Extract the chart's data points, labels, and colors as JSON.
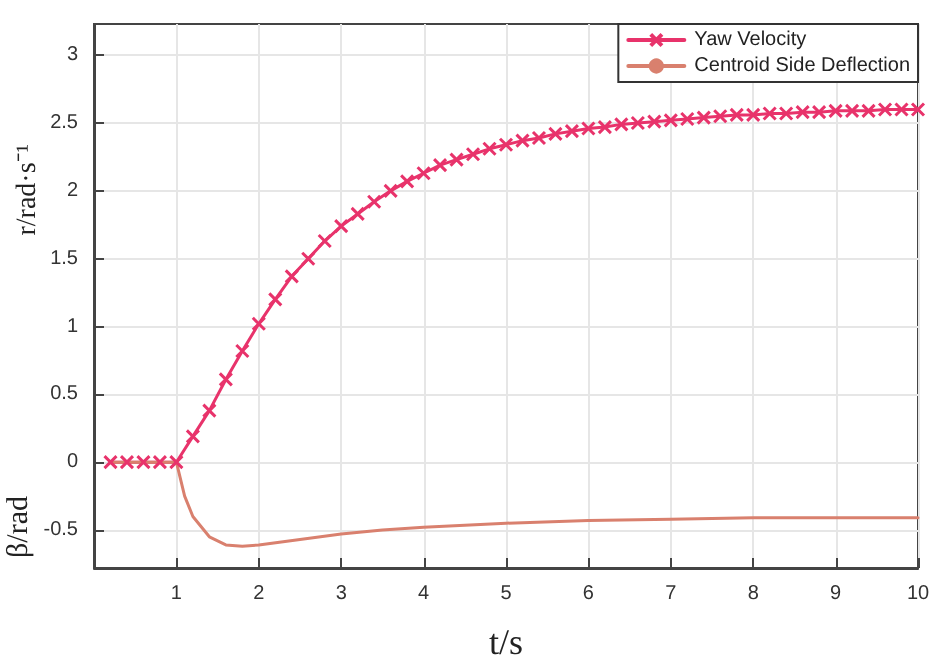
{
  "chart_data": {
    "type": "line",
    "xlabel": "t/s",
    "ylabel": "r/rad·s⁻¹",
    "annotations": [
      "β/rad"
    ],
    "xlim": [
      0,
      10
    ],
    "xticks": [
      1,
      2,
      3,
      4,
      5,
      6,
      7,
      8,
      9,
      10
    ],
    "ylim": [
      -0.78,
      3.23
    ],
    "yticks": [
      -0.5,
      0,
      0.5,
      1,
      1.5,
      2,
      2.5,
      3
    ],
    "grid": true,
    "legend": "top right",
    "line_style": "solid",
    "series": [
      {
        "name": "Yaw Velocity",
        "color": "#e8336b",
        "marker": "cross",
        "x": [
          0.2,
          0.4,
          0.6,
          0.8,
          1.0,
          1.2,
          1.4,
          1.6,
          1.8,
          2.0,
          2.2,
          2.4,
          2.6,
          2.8,
          3.0,
          3.2,
          3.4,
          3.6,
          3.8,
          4.0,
          4.2,
          4.4,
          4.6,
          4.8,
          5.0,
          5.2,
          5.4,
          5.6,
          5.8,
          6.0,
          6.2,
          6.4,
          6.6,
          6.8,
          7.0,
          7.2,
          7.4,
          7.6,
          7.8,
          8.0,
          8.2,
          8.4,
          8.6,
          8.8,
          9.0,
          9.2,
          9.4,
          9.6,
          9.8,
          10.0
        ],
        "values": [
          0,
          0,
          0,
          0,
          0,
          0.19,
          0.38,
          0.61,
          0.82,
          1.02,
          1.2,
          1.37,
          1.5,
          1.63,
          1.74,
          1.83,
          1.92,
          2.0,
          2.07,
          2.13,
          2.19,
          2.23,
          2.27,
          2.31,
          2.34,
          2.37,
          2.39,
          2.42,
          2.44,
          2.46,
          2.47,
          2.49,
          2.5,
          2.51,
          2.52,
          2.53,
          2.54,
          2.55,
          2.56,
          2.56,
          2.57,
          2.57,
          2.58,
          2.58,
          2.59,
          2.59,
          2.59,
          2.6,
          2.6,
          2.6
        ]
      },
      {
        "name": "Centroid Side Deflection",
        "color": "#d9806e",
        "marker": "none",
        "x": [
          0.2,
          1.0,
          1.1,
          1.2,
          1.4,
          1.6,
          1.8,
          2.0,
          2.5,
          3.0,
          3.5,
          4.0,
          5.0,
          6.0,
          7.0,
          8.0,
          9.0,
          10.0
        ],
        "values": [
          0,
          0,
          -0.25,
          -0.4,
          -0.55,
          -0.61,
          -0.62,
          -0.61,
          -0.57,
          -0.53,
          -0.5,
          -0.48,
          -0.45,
          -0.43,
          -0.42,
          -0.41,
          -0.41,
          -0.41
        ]
      }
    ]
  }
}
